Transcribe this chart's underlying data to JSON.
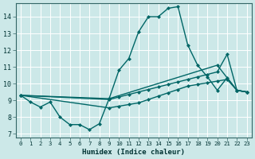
{
  "xlabel": "Humidex (Indice chaleur)",
  "bg_color": "#cce8e8",
  "line_color": "#006666",
  "xlim": [
    -0.5,
    23.5
  ],
  "ylim": [
    6.8,
    14.8
  ],
  "xticks": [
    0,
    1,
    2,
    3,
    4,
    5,
    6,
    7,
    8,
    9,
    10,
    11,
    12,
    13,
    14,
    15,
    16,
    17,
    18,
    19,
    20,
    21,
    22,
    23
  ],
  "yticks": [
    7,
    8,
    9,
    10,
    11,
    12,
    13,
    14
  ],
  "line1_x": [
    0,
    1,
    2,
    3,
    4,
    5,
    6,
    7,
    8,
    9,
    10,
    11,
    12,
    13,
    14,
    15,
    16,
    17,
    18,
    19,
    20,
    21,
    22,
    23
  ],
  "line1_y": [
    9.3,
    8.9,
    8.6,
    8.9,
    8.0,
    7.55,
    7.55,
    7.25,
    7.6,
    9.1,
    10.8,
    11.5,
    13.1,
    14.0,
    14.0,
    14.5,
    14.6,
    12.3,
    11.1,
    10.4,
    9.6,
    10.35,
    9.6,
    9.5
  ],
  "line2_x": [
    0,
    9,
    10,
    11,
    12,
    13,
    14,
    15,
    16,
    17,
    18,
    19,
    20,
    21,
    22,
    23
  ],
  "line2_y": [
    9.3,
    9.05,
    9.2,
    9.35,
    9.5,
    9.65,
    9.8,
    9.95,
    10.1,
    10.25,
    10.4,
    10.55,
    10.7,
    11.75,
    9.6,
    9.5
  ],
  "line3_x": [
    0,
    9,
    10,
    11,
    12,
    13,
    14,
    15,
    16,
    17,
    18,
    19,
    20,
    21,
    22,
    23
  ],
  "line3_y": [
    9.3,
    8.55,
    8.65,
    8.75,
    8.85,
    9.05,
    9.25,
    9.45,
    9.65,
    9.85,
    9.95,
    10.05,
    10.15,
    10.25,
    9.6,
    9.5
  ],
  "line4_x": [
    0,
    9,
    20,
    22,
    23
  ],
  "line4_y": [
    9.3,
    9.1,
    11.1,
    9.6,
    9.5
  ]
}
